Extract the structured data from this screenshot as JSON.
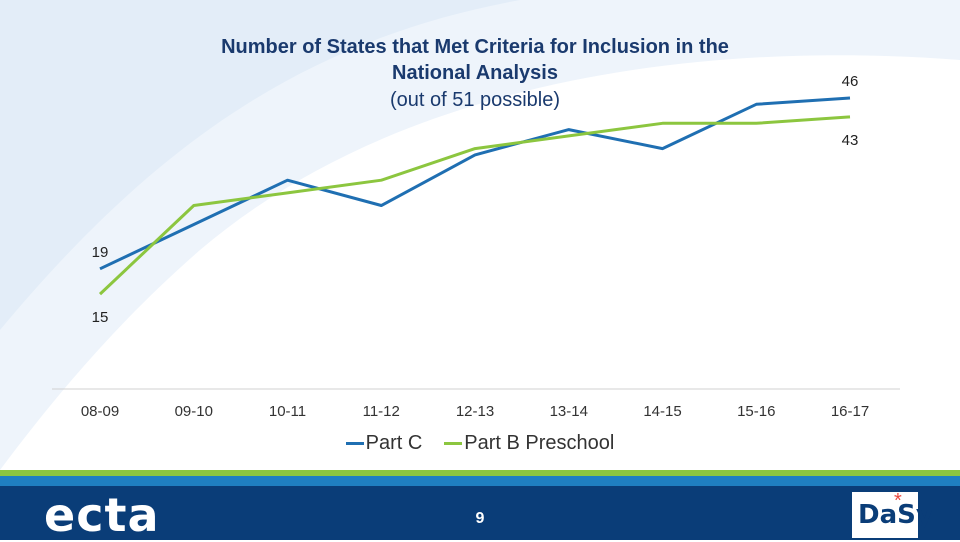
{
  "chart_data": {
    "type": "line",
    "title_lines": [
      "Number of States that Met Criteria for Inclusion in the",
      "National Analysis"
    ],
    "subtitle": "(out of 51 possible)",
    "categories": [
      "08-09",
      "09-10",
      "10-11",
      "11-12",
      "12-13",
      "13-14",
      "14-15",
      "15-16",
      "16-17"
    ],
    "series": [
      {
        "name": "Part C",
        "color": "#1f6fb2",
        "values": [
          19,
          26,
          33,
          29,
          37,
          41,
          38,
          45,
          46
        ]
      },
      {
        "name": "Part B Preschool",
        "color": "#8cc63f",
        "values": [
          15,
          29,
          31,
          33,
          38,
          40,
          42,
          42,
          43
        ]
      }
    ],
    "labeled_points": [
      {
        "series": 0,
        "index": 0,
        "text": "19",
        "position": "above"
      },
      {
        "series": 1,
        "index": 0,
        "text": "15",
        "position": "below"
      },
      {
        "series": 0,
        "index": 8,
        "text": "46",
        "position": "above"
      },
      {
        "series": 1,
        "index": 8,
        "text": "43",
        "position": "below"
      }
    ],
    "ylim": [
      0,
      52
    ],
    "legend": "bottom",
    "grid": false
  },
  "footer": {
    "logo_text": "ecta",
    "page_number": "9",
    "partner_logo_text": "DaSy",
    "partner_logo_mark": "*"
  },
  "colors": {
    "title": "#1a3a6e",
    "footer_bg": "#0a3d78",
    "stripe_blue": "#1f7fc1",
    "stripe_green": "#8cc63f"
  }
}
